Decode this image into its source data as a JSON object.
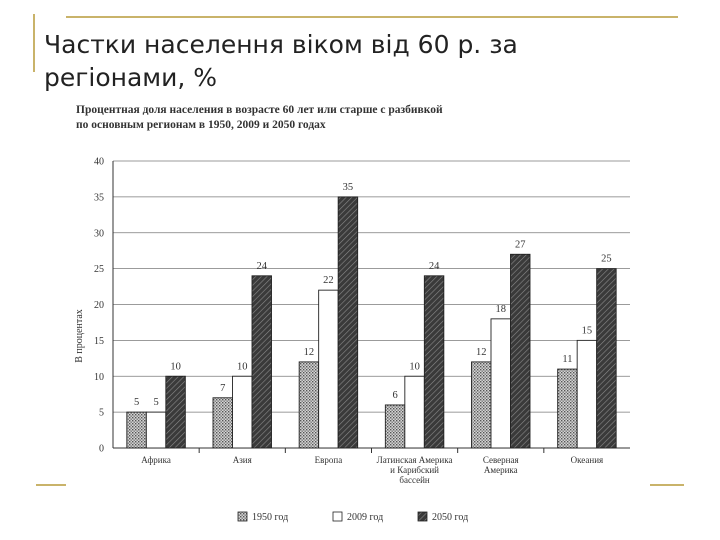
{
  "slide_title": "Частки населення віком від 60 р. за регіонами, %",
  "chart_data": {
    "type": "bar",
    "title_lines": [
      "Процентная доля населения в возрасте 60 лет или старше с разбивкой",
      "по основным регионам в 1950, 2009 и 2050 годах"
    ],
    "ylabel": "В процентах",
    "xlabel": "",
    "ylim": [
      0,
      40
    ],
    "yticks": [
      0,
      5,
      10,
      15,
      20,
      25,
      30,
      35,
      40
    ],
    "grid": true,
    "legend_position": "bottom",
    "categories": [
      [
        "Африка"
      ],
      [
        "Азия"
      ],
      [
        "Европа"
      ],
      [
        "Латинская Америка",
        "и Карибский",
        "бассейн"
      ],
      [
        "Северная",
        "Америка"
      ],
      [
        "Океания"
      ]
    ],
    "series": [
      {
        "name": "1950 год",
        "values": [
          5,
          7,
          12,
          6,
          12,
          11
        ],
        "labels": [
          "5",
          "7",
          "12",
          "6",
          "12",
          "11"
        ],
        "fill": "dots",
        "color": "#bdbdbd"
      },
      {
        "name": "2009 год",
        "values": [
          5,
          10,
          22,
          10,
          18,
          15
        ],
        "labels": [
          "5",
          "10",
          "22",
          "10",
          "18",
          "15"
        ],
        "fill": "white",
        "color": "#ffffff"
      },
      {
        "name": "2050 год",
        "values": [
          10,
          24,
          35,
          24,
          27,
          25
        ],
        "labels": [
          "10",
          "24",
          "35",
          "24",
          "27",
          "25"
        ],
        "fill": "hatch",
        "color": "#333333"
      }
    ]
  }
}
